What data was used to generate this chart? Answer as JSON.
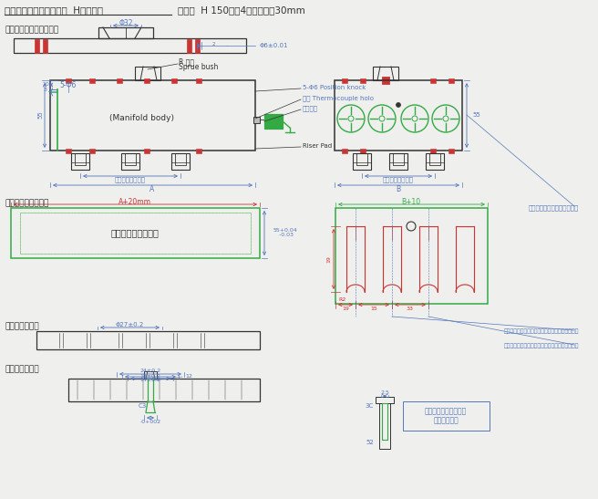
{
  "title1": "ミニランナー装置構成図  H型タイプ",
  "title2": "（例）  H 150型　4点ロー延長30mm",
  "bg_color": "#efefed",
  "BK": "#333333",
  "BL": "#5577bb",
  "RD": "#cc3333",
  "GR": "#33aa44",
  "section_labels": {
    "top_clamp": "トップクランプブレート",
    "spacer": "スペーサーブロック",
    "back": "バックプレート",
    "cavity": "キャビプレート"
  }
}
